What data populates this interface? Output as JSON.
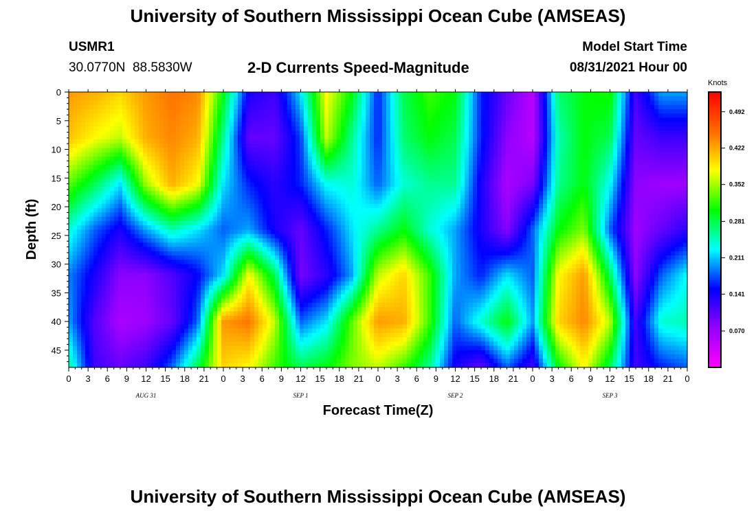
{
  "header": {
    "title": "University of Southern Mississippi Ocean Cube (AMSEAS)",
    "station": "USMR1",
    "location": "30.0770N  88.5830W",
    "subtitle": "2-D Currents Speed-Magnitude",
    "start_label": "Model Start Time",
    "start_value": "08/31/2021 Hour 00"
  },
  "footer": {
    "title": "University of Southern Mississippi Ocean Cube (AMSEAS)"
  },
  "chart_data": {
    "type": "heatmap",
    "title": "2-D Currents Speed-Magnitude",
    "xlabel": "Forecast Time(Z)",
    "ylabel": "Depth (ft)",
    "x_range_hours": [
      0,
      96
    ],
    "y_range_ft": [
      0,
      48
    ],
    "x_ticks": [
      "0",
      "3",
      "6",
      "9",
      "12",
      "15",
      "18",
      "21",
      "0",
      "3",
      "6",
      "9",
      "12",
      "15",
      "18",
      "21",
      "0",
      "3",
      "6",
      "9",
      "12",
      "15",
      "18",
      "21",
      "0",
      "3",
      "6",
      "9",
      "12",
      "15",
      "18",
      "21",
      "0"
    ],
    "date_labels": [
      {
        "label": "AUG 31",
        "hour": 12
      },
      {
        "label": "SEP 1",
        "hour": 36
      },
      {
        "label": "SEP 2",
        "hour": 60
      },
      {
        "label": "SEP 3",
        "hour": 84
      }
    ],
    "y_ticks": [
      0,
      5,
      10,
      15,
      20,
      25,
      30,
      35,
      40,
      45
    ],
    "colorbar": {
      "unit": "Knots",
      "ticks": [
        "0.492",
        "0.422",
        "0.352",
        "0.281",
        "0.211",
        "0.141",
        "0.070"
      ],
      "min": 0.0,
      "max": 0.53,
      "colors": [
        "#ff00ff",
        "#9400ff",
        "#0000ff",
        "#00ffff",
        "#00ff00",
        "#ffff00",
        "#ff6a00",
        "#ff0000"
      ]
    },
    "depths_ft": [
      0,
      8,
      16,
      24,
      32,
      40,
      48
    ],
    "hours": [
      0,
      4,
      8,
      12,
      16,
      20,
      24,
      28,
      32,
      36,
      40,
      44,
      48,
      52,
      56,
      60,
      64,
      68,
      72,
      76,
      80,
      84,
      88,
      92,
      96
    ],
    "values": [
      [
        0.43,
        0.42,
        0.4,
        0.43,
        0.45,
        0.44,
        0.3,
        0.14,
        0.12,
        0.22,
        0.38,
        0.3,
        0.16,
        0.28,
        0.32,
        0.3,
        0.16,
        0.1,
        0.05,
        0.27,
        0.3,
        0.31,
        0.12,
        0.2,
        0.2
      ],
      [
        0.41,
        0.38,
        0.36,
        0.42,
        0.44,
        0.42,
        0.26,
        0.1,
        0.1,
        0.17,
        0.36,
        0.26,
        0.16,
        0.27,
        0.3,
        0.28,
        0.16,
        0.08,
        0.05,
        0.25,
        0.3,
        0.28,
        0.1,
        0.12,
        0.12
      ],
      [
        0.33,
        0.28,
        0.22,
        0.35,
        0.42,
        0.38,
        0.22,
        0.16,
        0.13,
        0.16,
        0.23,
        0.24,
        0.18,
        0.24,
        0.26,
        0.26,
        0.14,
        0.06,
        0.09,
        0.26,
        0.3,
        0.23,
        0.08,
        0.07,
        0.07
      ],
      [
        0.24,
        0.18,
        0.14,
        0.2,
        0.25,
        0.22,
        0.18,
        0.2,
        0.14,
        0.1,
        0.16,
        0.22,
        0.26,
        0.3,
        0.24,
        0.2,
        0.14,
        0.08,
        0.18,
        0.3,
        0.34,
        0.18,
        0.07,
        0.1,
        0.13
      ],
      [
        0.19,
        0.14,
        0.08,
        0.08,
        0.11,
        0.15,
        0.22,
        0.38,
        0.28,
        0.09,
        0.13,
        0.2,
        0.36,
        0.4,
        0.32,
        0.2,
        0.16,
        0.22,
        0.18,
        0.38,
        0.43,
        0.28,
        0.08,
        0.18,
        0.23
      ],
      [
        0.2,
        0.11,
        0.06,
        0.07,
        0.1,
        0.18,
        0.43,
        0.45,
        0.36,
        0.18,
        0.22,
        0.33,
        0.43,
        0.42,
        0.32,
        0.18,
        0.24,
        0.3,
        0.2,
        0.4,
        0.44,
        0.36,
        0.12,
        0.24,
        0.25
      ],
      [
        0.26,
        0.12,
        0.1,
        0.12,
        0.18,
        0.28,
        0.4,
        0.38,
        0.32,
        0.28,
        0.3,
        0.34,
        0.36,
        0.32,
        0.26,
        0.14,
        0.1,
        0.18,
        0.12,
        0.3,
        0.38,
        0.28,
        0.12,
        0.16,
        0.18
      ]
    ]
  }
}
